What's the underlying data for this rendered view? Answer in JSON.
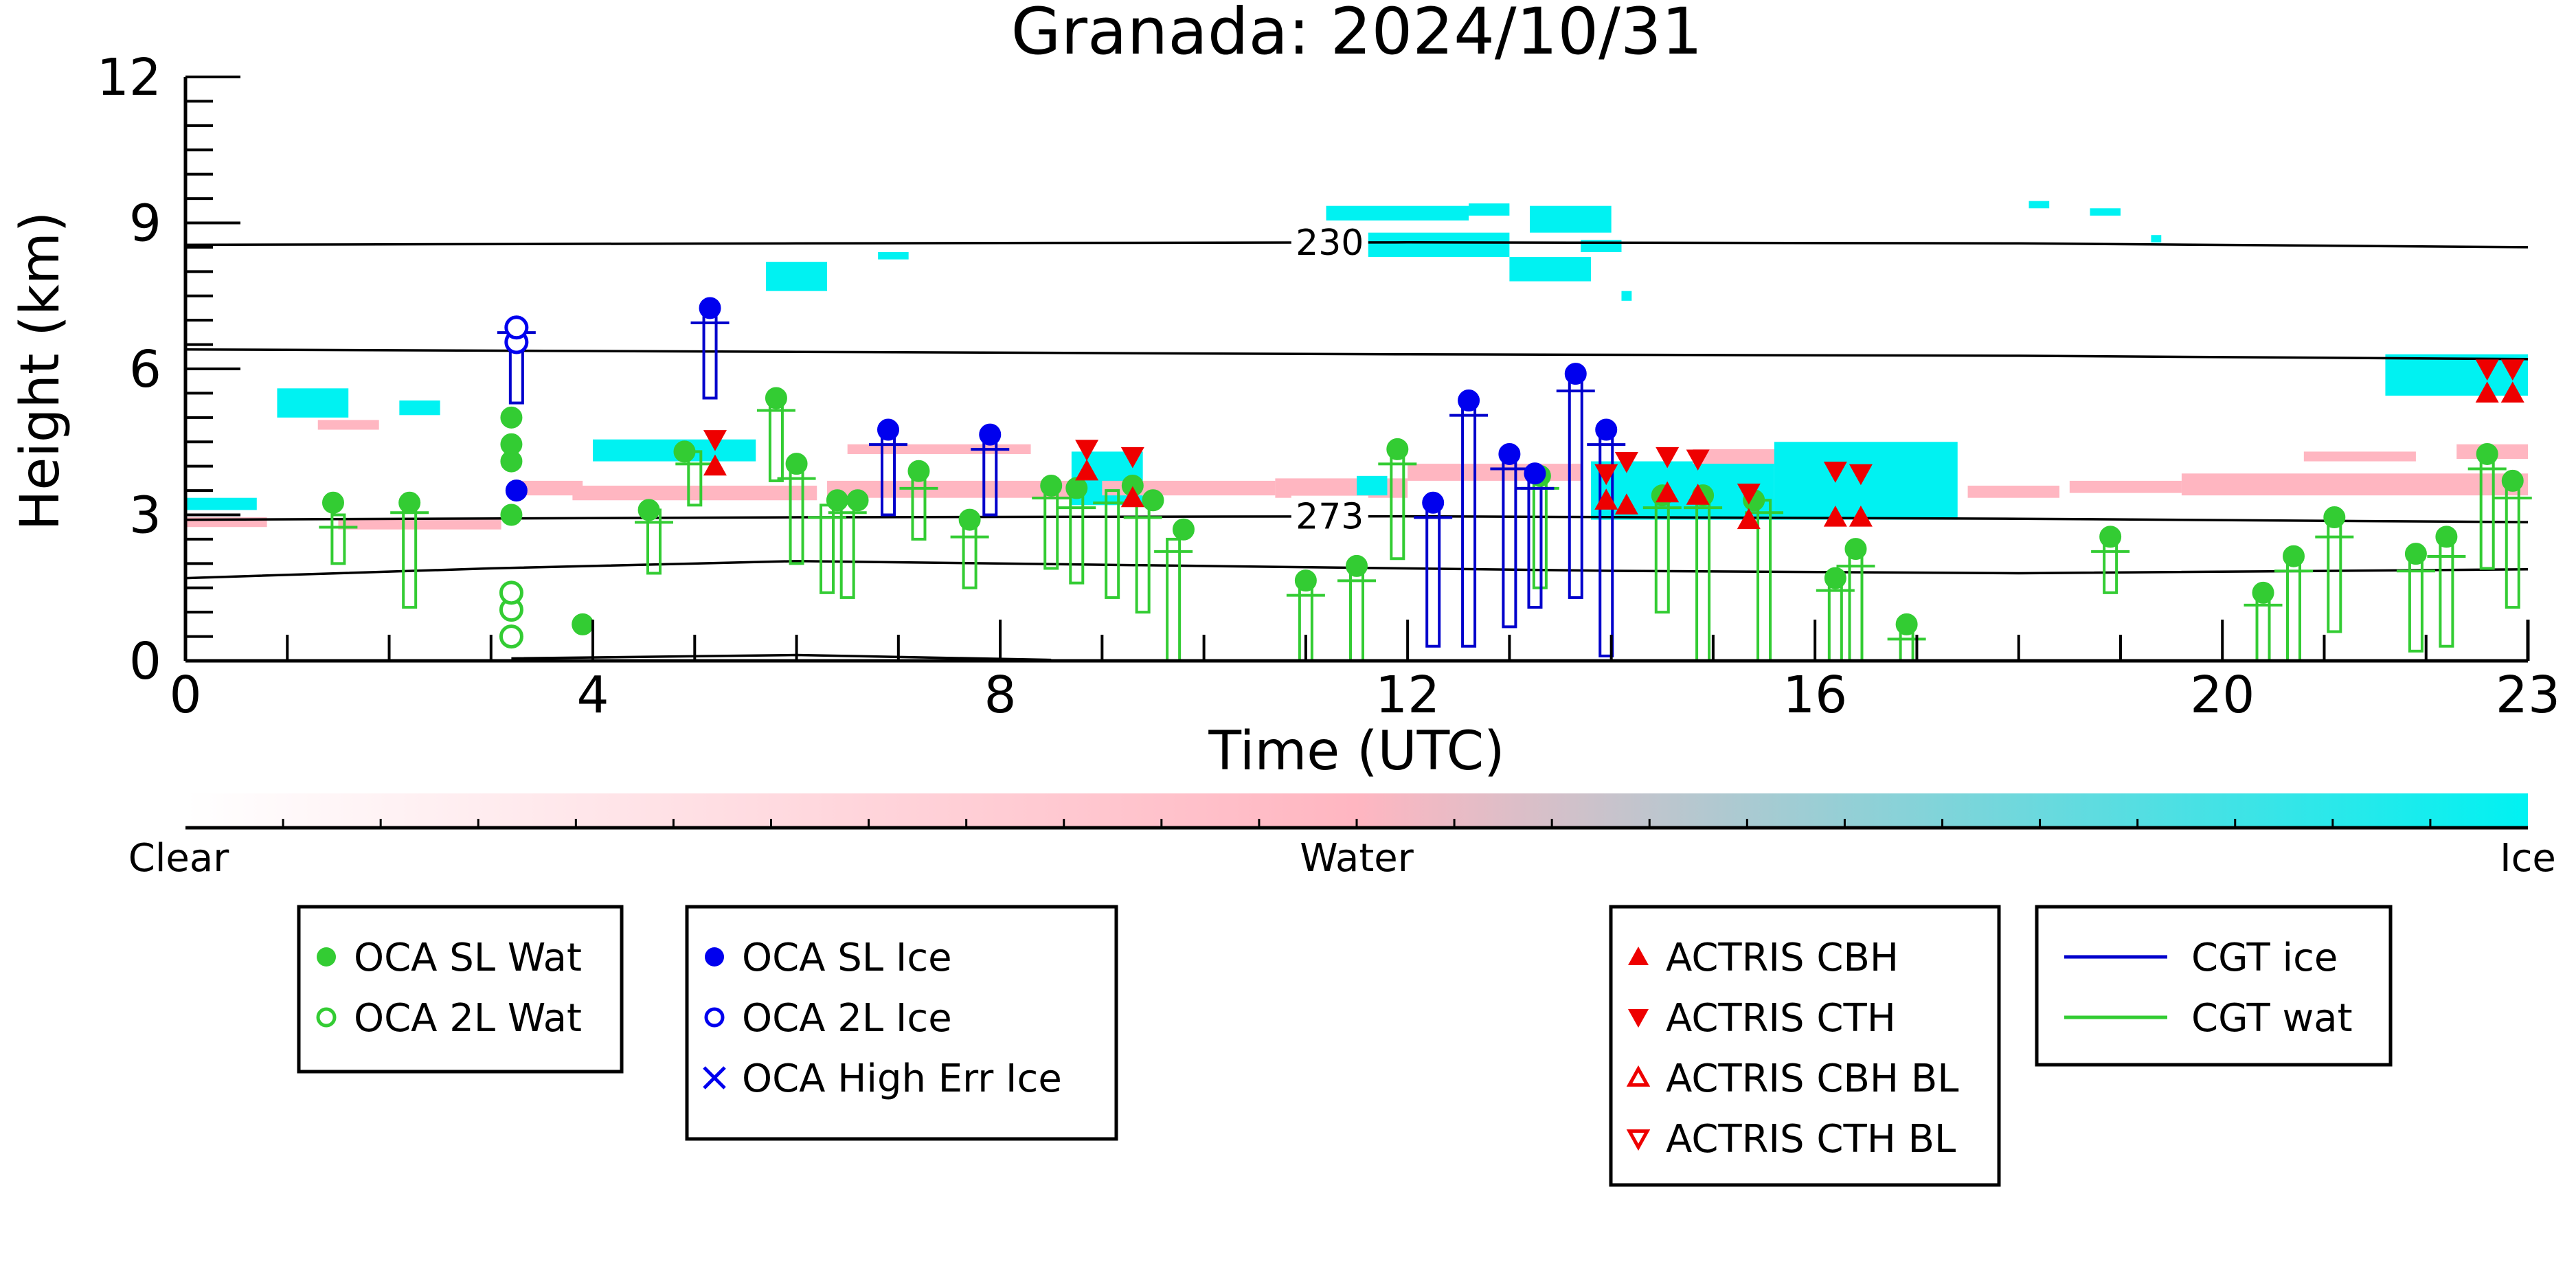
{
  "chart_data": {
    "type": "scatter",
    "title": "Granada: 2024/10/31",
    "xlabel": "Time (UTC)",
    "ylabel": "Height (km)",
    "xlim": [
      0,
      23
    ],
    "ylim": [
      0,
      12
    ],
    "xticks": [
      0,
      4,
      8,
      12,
      16,
      20,
      23
    ],
    "yticks": [
      0,
      3,
      6,
      9,
      12
    ],
    "grid": false,
    "colorbar": {
      "labels": [
        "Clear",
        "Water",
        "Ice"
      ],
      "colors": [
        "#ffffff",
        "#ffb6c1",
        "#00f2f2"
      ]
    },
    "contours": [
      {
        "label": "230",
        "points": [
          [
            0,
            8.55
          ],
          [
            6,
            8.58
          ],
          [
            12,
            8.6
          ],
          [
            18,
            8.58
          ],
          [
            23,
            8.5
          ]
        ]
      },
      {
        "label": "",
        "points": [
          [
            0,
            6.4
          ],
          [
            6,
            6.35
          ],
          [
            12,
            6.3
          ],
          [
            18,
            6.27
          ],
          [
            23,
            6.2
          ]
        ]
      },
      {
        "label": "273",
        "points": [
          [
            0,
            2.9
          ],
          [
            6,
            2.95
          ],
          [
            12,
            2.97
          ],
          [
            18,
            2.92
          ],
          [
            23,
            2.85
          ]
        ]
      },
      {
        "label": "",
        "points": [
          [
            0,
            1.7
          ],
          [
            3,
            1.9
          ],
          [
            6,
            2.05
          ],
          [
            10,
            1.95
          ],
          [
            14,
            1.85
          ],
          [
            18,
            1.8
          ],
          [
            23,
            1.88
          ]
        ]
      },
      {
        "label": "",
        "points": [
          [
            3.2,
            0.05
          ],
          [
            6,
            0.12
          ],
          [
            8.5,
            0.02
          ]
        ]
      }
    ],
    "cloud_mask": [
      {
        "phase": "ice",
        "t0": 0.0,
        "t1": 0.7,
        "h0": 3.1,
        "h1": 3.35
      },
      {
        "phase": "water",
        "t0": 0.0,
        "t1": 0.8,
        "h0": 2.75,
        "h1": 2.95
      },
      {
        "phase": "ice",
        "t0": 0.9,
        "t1": 1.6,
        "h0": 5.0,
        "h1": 5.6
      },
      {
        "phase": "water",
        "t0": 1.3,
        "t1": 1.9,
        "h0": 4.75,
        "h1": 4.95
      },
      {
        "phase": "ice",
        "t0": 2.1,
        "t1": 2.5,
        "h0": 5.05,
        "h1": 5.35
      },
      {
        "phase": "water",
        "t0": 1.5,
        "t1": 3.1,
        "h0": 2.7,
        "h1": 2.9
      },
      {
        "phase": "water",
        "t0": 3.2,
        "t1": 3.9,
        "h0": 3.4,
        "h1": 3.7
      },
      {
        "phase": "ice",
        "t0": 4.0,
        "t1": 5.6,
        "h0": 4.1,
        "h1": 4.55
      },
      {
        "phase": "water",
        "t0": 3.8,
        "t1": 6.2,
        "h0": 3.3,
        "h1": 3.6
      },
      {
        "phase": "ice",
        "t0": 5.7,
        "t1": 6.3,
        "h0": 7.6,
        "h1": 8.2
      },
      {
        "phase": "ice",
        "t0": 6.8,
        "t1": 7.1,
        "h0": 8.25,
        "h1": 8.4
      },
      {
        "phase": "water",
        "t0": 6.3,
        "t1": 9.0,
        "h0": 3.35,
        "h1": 3.7
      },
      {
        "phase": "water",
        "t0": 6.5,
        "t1": 8.3,
        "h0": 4.25,
        "h1": 4.45
      },
      {
        "phase": "ice",
        "t0": 8.7,
        "t1": 9.4,
        "h0": 3.2,
        "h1": 4.3
      },
      {
        "phase": "water",
        "t0": 9.0,
        "t1": 10.7,
        "h0": 3.4,
        "h1": 3.7
      },
      {
        "phase": "water",
        "t0": 10.7,
        "t1": 12.0,
        "h0": 3.35,
        "h1": 3.75
      },
      {
        "phase": "ice",
        "t0": 11.5,
        "t1": 11.8,
        "h0": 3.4,
        "h1": 3.8
      },
      {
        "phase": "water",
        "t0": 12.0,
        "t1": 13.7,
        "h0": 3.7,
        "h1": 4.05
      },
      {
        "phase": "ice",
        "t0": 11.3,
        "t1": 11.4,
        "h0": 8.5,
        "h1": 8.7
      },
      {
        "phase": "ice",
        "t0": 11.2,
        "t1": 12.6,
        "h0": 9.05,
        "h1": 9.35
      },
      {
        "phase": "ice",
        "t0": 11.6,
        "t1": 13.0,
        "h0": 8.3,
        "h1": 8.8
      },
      {
        "phase": "ice",
        "t0": 12.6,
        "t1": 13.0,
        "h0": 9.15,
        "h1": 9.4
      },
      {
        "phase": "ice",
        "t0": 13.2,
        "t1": 14.0,
        "h0": 8.8,
        "h1": 9.35
      },
      {
        "phase": "ice",
        "t0": 13.0,
        "t1": 13.8,
        "h0": 7.8,
        "h1": 8.3
      },
      {
        "phase": "ice",
        "t0": 13.7,
        "t1": 14.1,
        "h0": 8.4,
        "h1": 8.65
      },
      {
        "phase": "ice",
        "t0": 14.1,
        "t1": 14.2,
        "h0": 7.4,
        "h1": 7.6
      },
      {
        "phase": "ice",
        "t0": 13.8,
        "t1": 15.6,
        "h0": 2.9,
        "h1": 4.1
      },
      {
        "phase": "water",
        "t0": 14.8,
        "t1": 15.8,
        "h0": 4.05,
        "h1": 4.35
      },
      {
        "phase": "ice",
        "t0": 15.6,
        "t1": 17.4,
        "h0": 2.9,
        "h1": 4.5
      },
      {
        "phase": "water",
        "t0": 17.5,
        "t1": 18.4,
        "h0": 3.35,
        "h1": 3.6
      },
      {
        "phase": "water",
        "t0": 18.5,
        "t1": 19.6,
        "h0": 3.45,
        "h1": 3.7
      },
      {
        "phase": "water",
        "t0": 19.6,
        "t1": 23.0,
        "h0": 3.4,
        "h1": 3.85
      },
      {
        "phase": "water",
        "t0": 20.8,
        "t1": 21.9,
        "h0": 4.1,
        "h1": 4.3
      },
      {
        "phase": "water",
        "t0": 22.3,
        "t1": 23.0,
        "h0": 4.15,
        "h1": 4.45
      },
      {
        "phase": "ice",
        "t0": 18.1,
        "t1": 18.3,
        "h0": 9.3,
        "h1": 9.45
      },
      {
        "phase": "ice",
        "t0": 18.7,
        "t1": 19.0,
        "h0": 9.15,
        "h1": 9.3
      },
      {
        "phase": "ice",
        "t0": 19.3,
        "t1": 19.4,
        "h0": 8.6,
        "h1": 8.75
      },
      {
        "phase": "ice",
        "t0": 21.6,
        "t1": 23.0,
        "h0": 5.45,
        "h1": 6.3
      }
    ],
    "cgt_wat": [
      [
        1.5,
        2.0,
        3.0
      ],
      [
        2.2,
        1.1,
        3.3
      ],
      [
        4.6,
        1.8,
        3.1
      ],
      [
        5.0,
        3.2,
        4.3
      ],
      [
        5.8,
        3.7,
        5.4
      ],
      [
        6.0,
        2.0,
        4.0
      ],
      [
        6.3,
        1.4,
        3.2
      ],
      [
        6.5,
        1.3,
        3.3
      ],
      [
        7.2,
        2.5,
        3.8
      ],
      [
        7.7,
        1.5,
        2.8
      ],
      [
        8.5,
        1.9,
        3.6
      ],
      [
        8.75,
        1.6,
        3.4
      ],
      [
        9.1,
        1.3,
        3.5
      ],
      [
        9.4,
        1.0,
        3.2
      ],
      [
        9.7,
        0.0,
        2.5
      ],
      [
        11.0,
        0.0,
        1.6
      ],
      [
        11.5,
        0.0,
        1.9
      ],
      [
        11.9,
        2.1,
        4.3
      ],
      [
        13.3,
        1.5,
        3.8
      ],
      [
        14.5,
        1.0,
        3.4
      ],
      [
        14.9,
        0.0,
        3.4
      ],
      [
        15.5,
        0.0,
        3.3
      ],
      [
        16.2,
        0.0,
        1.7
      ],
      [
        16.4,
        0.0,
        2.2
      ],
      [
        16.9,
        0.0,
        0.7
      ],
      [
        18.9,
        1.4,
        2.5
      ],
      [
        20.4,
        0.0,
        1.4
      ],
      [
        20.7,
        0.0,
        2.1
      ],
      [
        21.1,
        0.6,
        2.8
      ],
      [
        21.9,
        0.2,
        2.1
      ],
      [
        22.2,
        0.3,
        2.4
      ],
      [
        22.6,
        1.9,
        4.2
      ],
      [
        22.85,
        1.1,
        3.6
      ]
    ],
    "cgt_ice": [
      [
        3.25,
        5.3,
        7.0
      ],
      [
        5.15,
        5.4,
        7.2
      ],
      [
        6.9,
        3.0,
        4.7
      ],
      [
        7.9,
        3.0,
        4.6
      ],
      [
        12.25,
        0.3,
        3.2
      ],
      [
        12.6,
        0.3,
        5.3
      ],
      [
        13.0,
        0.7,
        4.2
      ],
      [
        13.25,
        1.1,
        3.8
      ],
      [
        13.65,
        1.3,
        5.8
      ],
      [
        13.95,
        0.1,
        4.7
      ]
    ],
    "oca_sl_wat": [
      [
        1.45,
        3.25
      ],
      [
        2.2,
        3.25
      ],
      [
        3.2,
        3.0
      ],
      [
        3.2,
        4.1
      ],
      [
        3.2,
        4.45
      ],
      [
        3.2,
        5.0
      ],
      [
        3.9,
        0.75
      ],
      [
        4.55,
        3.1
      ],
      [
        4.9,
        4.3
      ],
      [
        5.8,
        5.4
      ],
      [
        6.0,
        4.05
      ],
      [
        6.4,
        3.3
      ],
      [
        6.6,
        3.3
      ],
      [
        7.2,
        3.9
      ],
      [
        7.7,
        2.9
      ],
      [
        8.5,
        3.6
      ],
      [
        8.75,
        3.55
      ],
      [
        9.3,
        3.6
      ],
      [
        9.5,
        3.3
      ],
      [
        9.8,
        2.7
      ],
      [
        11.0,
        1.65
      ],
      [
        11.5,
        1.95
      ],
      [
        11.9,
        4.35
      ],
      [
        13.3,
        3.8
      ],
      [
        14.5,
        3.4
      ],
      [
        14.9,
        3.4
      ],
      [
        15.4,
        3.3
      ],
      [
        16.2,
        1.7
      ],
      [
        16.4,
        2.3
      ],
      [
        16.9,
        0.75
      ],
      [
        18.9,
        2.55
      ],
      [
        20.4,
        1.4
      ],
      [
        20.7,
        2.15
      ],
      [
        21.1,
        2.95
      ],
      [
        21.9,
        2.2
      ],
      [
        22.2,
        2.55
      ],
      [
        22.6,
        4.25
      ],
      [
        22.85,
        3.7
      ]
    ],
    "oca_2l_wat": [
      [
        3.2,
        1.05
      ],
      [
        3.2,
        1.4
      ],
      [
        3.2,
        0.5
      ]
    ],
    "oca_sl_ice": [
      [
        3.25,
        3.5
      ],
      [
        5.15,
        7.25
      ],
      [
        6.9,
        4.75
      ],
      [
        7.9,
        4.65
      ],
      [
        12.25,
        3.25
      ],
      [
        12.6,
        5.35
      ],
      [
        13.0,
        4.25
      ],
      [
        13.25,
        3.85
      ],
      [
        13.65,
        5.9
      ],
      [
        13.95,
        4.75
      ]
    ],
    "oca_2l_ice": [
      [
        3.25,
        6.55
      ],
      [
        3.25,
        6.85
      ]
    ],
    "actris_cbh": [
      [
        5.2,
        4.0
      ],
      [
        8.85,
        3.9
      ],
      [
        9.3,
        3.35
      ],
      [
        13.95,
        3.3
      ],
      [
        14.15,
        3.2
      ],
      [
        14.55,
        3.45
      ],
      [
        14.85,
        3.4
      ],
      [
        15.35,
        2.9
      ],
      [
        16.2,
        2.95
      ],
      [
        16.45,
        2.95
      ],
      [
        22.6,
        5.5
      ],
      [
        22.85,
        5.5
      ]
    ],
    "actris_cth": [
      [
        5.2,
        4.55
      ],
      [
        8.85,
        4.35
      ],
      [
        9.3,
        4.2
      ],
      [
        13.95,
        3.85
      ],
      [
        14.15,
        4.1
      ],
      [
        14.55,
        4.2
      ],
      [
        14.85,
        4.15
      ],
      [
        15.35,
        3.45
      ],
      [
        16.2,
        3.9
      ],
      [
        16.45,
        3.85
      ],
      [
        22.6,
        6.0
      ],
      [
        22.85,
        6.0
      ]
    ],
    "legends": [
      {
        "items": [
          {
            "symbol": "dot-filled",
            "color": "#33cc33",
            "label": "OCA SL Wat"
          },
          {
            "symbol": "dot-open",
            "color": "#33cc33",
            "label": "OCA 2L Wat"
          }
        ]
      },
      {
        "items": [
          {
            "symbol": "dot-filled",
            "color": "#0000ee",
            "label": "OCA SL Ice"
          },
          {
            "symbol": "dot-open",
            "color": "#0000ee",
            "label": "OCA 2L Ice"
          },
          {
            "symbol": "cross",
            "color": "#0000ee",
            "label": "OCA High Err Ice"
          }
        ]
      },
      {
        "items": [
          {
            "symbol": "tri-up-filled",
            "color": "#ee0000",
            "label": "ACTRIS CBH"
          },
          {
            "symbol": "tri-down-filled",
            "color": "#ee0000",
            "label": "ACTRIS CTH"
          },
          {
            "symbol": "tri-up-open",
            "color": "#ee0000",
            "label": "ACTRIS CBH BL"
          },
          {
            "symbol": "tri-down-open",
            "color": "#ee0000",
            "label": "ACTRIS CTH BL"
          }
        ]
      },
      {
        "items": [
          {
            "symbol": "line",
            "color": "#0000cc",
            "label": "CGT ice"
          },
          {
            "symbol": "line",
            "color": "#33cc33",
            "label": "CGT wat"
          }
        ]
      }
    ],
    "colors": {
      "water": "#ffb6c1",
      "ice": "#00f2f2",
      "oca_wat": "#33cc33",
      "oca_ice": "#0000ee",
      "actris": "#ee0000"
    }
  }
}
